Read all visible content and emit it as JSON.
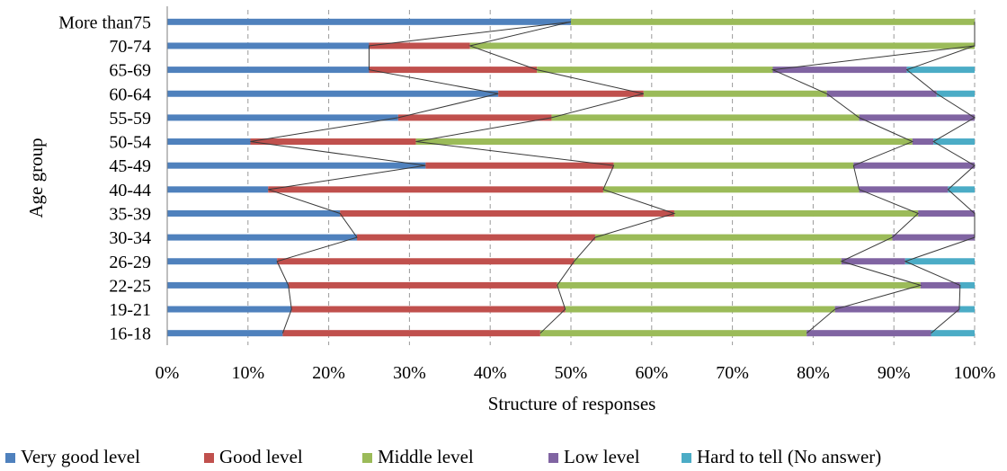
{
  "chart_data": {
    "type": "bar",
    "stacked": true,
    "orientation": "horizontal",
    "xlabel": "Structure of responses",
    "ylabel": "Age group",
    "xlim": [
      0,
      100
    ],
    "x_ticks": [
      "0%",
      "10%",
      "20%",
      "30%",
      "40%",
      "50%",
      "60%",
      "70%",
      "80%",
      "90%",
      "100%"
    ],
    "grid": "vertical dashed",
    "legend_position": "bottom",
    "categories": [
      "More than75",
      "70-74",
      "65-69",
      "60-64",
      "55-59",
      "50-54",
      "45-49",
      "40-44",
      "35-39",
      "30-34",
      "26-29",
      "22-25",
      "19-21",
      "16-18"
    ],
    "series": [
      {
        "name": "Very good level",
        "color": "#4f81bd",
        "values": [
          50,
          25,
          25,
          41,
          28.6,
          10.3,
          32,
          12.5,
          21.4,
          23.5,
          13.6,
          15,
          15.4,
          14.3
        ]
      },
      {
        "name": "Good level",
        "color": "#c0504d",
        "values": [
          0,
          12.5,
          20.8,
          18,
          19,
          20.5,
          23.3,
          41.5,
          41.4,
          29.5,
          36.8,
          33.3,
          33.9,
          31.9
        ]
      },
      {
        "name": "Middle level",
        "color": "#9bbb59",
        "values": [
          50,
          62.5,
          29.2,
          22.7,
          38.1,
          61.5,
          29.7,
          31.7,
          30.2,
          36.8,
          33.1,
          45,
          33.4,
          33
        ]
      },
      {
        "name": "Low level",
        "color": "#8064a2",
        "values": [
          0,
          0,
          16.6,
          13.6,
          14.3,
          2.6,
          15,
          11,
          7,
          10.2,
          7.9,
          4.9,
          15.4,
          15.4
        ]
      },
      {
        "name": "Hard to tell (No answer)",
        "color": "#4bacc6",
        "values": [
          0,
          0,
          8.4,
          4.7,
          0,
          5.1,
          0,
          3.3,
          0,
          0,
          8.6,
          1.8,
          1.9,
          5.4
        ]
      }
    ]
  }
}
